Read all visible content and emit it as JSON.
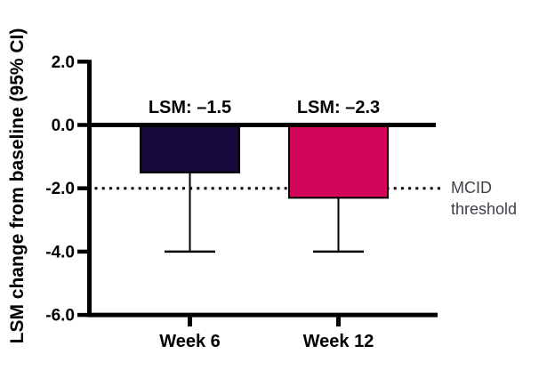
{
  "figure": {
    "background": "#ffffff",
    "threshold_label": "MCID threshold"
  },
  "chart_data": {
    "type": "bar",
    "title": "",
    "xlabel": "",
    "ylabel": "LSM change from baseline (95% CI)",
    "ylim": [
      -6.0,
      2.0
    ],
    "yticks": [
      2.0,
      0.0,
      -2.0,
      -4.0,
      -6.0
    ],
    "ytick_labels": [
      "2.0",
      "0.0",
      "-2.0",
      "-4.0",
      "-6.0"
    ],
    "categories": [
      "Week 6",
      "Week 12"
    ],
    "values": [
      -1.5,
      -2.3
    ],
    "bar_labels": [
      "LSM: –1.5",
      "LSM: –2.3"
    ],
    "bar_colors": [
      "#160838",
      "#d2075a"
    ],
    "error_bars_lower": [
      -4.0,
      -4.0
    ],
    "threshold": {
      "value": -2.0,
      "label": "MCID threshold",
      "line_style": "dotted"
    },
    "grid": false,
    "legend": "none"
  }
}
